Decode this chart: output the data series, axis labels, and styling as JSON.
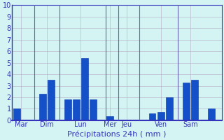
{
  "bar_values": [
    1.0,
    0.0,
    2.3,
    3.5,
    1.8,
    1.8,
    5.4,
    1.8,
    0.35,
    0.0,
    0.6,
    0.7,
    2.0,
    3.3,
    3.5,
    1.0
  ],
  "bar_positions": [
    0,
    1,
    3,
    4,
    6,
    7,
    8,
    9,
    11,
    13,
    16,
    17,
    18,
    20,
    21,
    23
  ],
  "bar_color": "#1450c8",
  "bar_edge_color": "#0030aa",
  "background_color": "#d4f4f4",
  "grid_color": "#b8b8cc",
  "sep_color": "#6666aa",
  "tick_label_color": "#3333bb",
  "xlabel": "Précipitations 24h ( mm )",
  "xlabel_color": "#3333bb",
  "xlabel_fontsize": 8,
  "ylim": [
    0,
    10
  ],
  "yticks": [
    0,
    1,
    2,
    3,
    4,
    5,
    6,
    7,
    8,
    9,
    10
  ],
  "ytick_fontsize": 7,
  "xtick_fontsize": 7,
  "day_labels": [
    "Mar",
    "Dim",
    "Lun",
    "Mer",
    "Jeu",
    "Ven",
    "Sam"
  ],
  "day_positions": [
    0.5,
    3.5,
    7.5,
    11,
    13,
    17,
    20.5
  ],
  "sep_positions": [
    2,
    5,
    10.5,
    12,
    14.5,
    19
  ],
  "xlim": [
    -0.6,
    24.2
  ],
  "bar_width": 0.82
}
